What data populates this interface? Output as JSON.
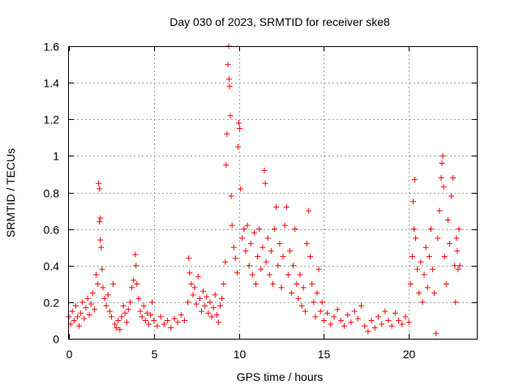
{
  "chart_data": {
    "type": "scatter",
    "title": "Day 030 of 2023, SRMTID for receiver ske8",
    "xlabel": "GPS time / hours",
    "ylabel": "SRMTID / TECUs",
    "xlim": [
      0,
      24
    ],
    "ylim": [
      0,
      1.6
    ],
    "xticks": [
      0,
      5,
      10,
      15,
      20
    ],
    "xtick_labels": [
      "0",
      "5",
      "10",
      "15",
      "20"
    ],
    "yticks": [
      0,
      0.2,
      0.4,
      0.6,
      0.8,
      1.0,
      1.2,
      1.4,
      1.6
    ],
    "ytick_labels": [
      "0",
      "0.2",
      "0.4",
      "0.6",
      "0.8",
      "1",
      "1.2",
      "1.4",
      "1.6"
    ],
    "grid": true,
    "marker": "plus",
    "color": "#ff0000",
    "series": [
      {
        "name": "ske8",
        "points": [
          [
            0.0,
            0.12
          ],
          [
            0.1,
            0.08
          ],
          [
            0.2,
            0.15
          ],
          [
            0.3,
            0.1
          ],
          [
            0.4,
            0.18
          ],
          [
            0.5,
            0.12
          ],
          [
            0.6,
            0.07
          ],
          [
            0.7,
            0.14
          ],
          [
            0.8,
            0.2
          ],
          [
            0.9,
            0.11
          ],
          [
            1.0,
            0.17
          ],
          [
            1.1,
            0.22
          ],
          [
            1.2,
            0.13
          ],
          [
            1.3,
            0.19
          ],
          [
            1.4,
            0.25
          ],
          [
            1.5,
            0.16
          ],
          [
            1.6,
            0.35
          ],
          [
            1.7,
            0.3
          ],
          [
            1.75,
            0.85
          ],
          [
            1.8,
            0.82
          ],
          [
            1.85,
            0.66
          ],
          [
            1.8,
            0.64
          ],
          [
            1.85,
            0.54
          ],
          [
            1.9,
            0.5
          ],
          [
            1.95,
            0.38
          ],
          [
            2.0,
            0.28
          ],
          [
            2.1,
            0.22
          ],
          [
            2.2,
            0.18
          ],
          [
            2.3,
            0.24
          ],
          [
            2.4,
            0.15
          ],
          [
            2.5,
            0.12
          ],
          [
            2.6,
            0.3
          ],
          [
            2.7,
            0.08
          ],
          [
            2.8,
            0.06
          ],
          [
            2.9,
            0.1
          ],
          [
            3.0,
            0.05
          ],
          [
            3.1,
            0.12
          ],
          [
            3.2,
            0.18
          ],
          [
            3.3,
            0.14
          ],
          [
            3.4,
            0.09
          ],
          [
            3.5,
            0.16
          ],
          [
            3.6,
            0.2
          ],
          [
            3.7,
            0.28
          ],
          [
            3.8,
            0.32
          ],
          [
            3.9,
            0.46
          ],
          [
            3.95,
            0.4
          ],
          [
            4.0,
            0.3
          ],
          [
            4.1,
            0.22
          ],
          [
            4.2,
            0.15
          ],
          [
            4.3,
            0.12
          ],
          [
            4.4,
            0.18
          ],
          [
            4.5,
            0.1
          ],
          [
            4.6,
            0.14
          ],
          [
            4.7,
            0.08
          ],
          [
            4.8,
            0.13
          ],
          [
            4.9,
            0.2
          ],
          [
            5.0,
            0.1
          ],
          [
            5.2,
            0.07
          ],
          [
            5.4,
            0.12
          ],
          [
            5.6,
            0.08
          ],
          [
            5.8,
            0.1
          ],
          [
            6.0,
            0.06
          ],
          [
            6.2,
            0.11
          ],
          [
            6.4,
            0.09
          ],
          [
            6.6,
            0.13
          ],
          [
            6.8,
            0.1
          ],
          [
            7.0,
            0.2
          ],
          [
            7.05,
            0.44
          ],
          [
            7.1,
            0.36
          ],
          [
            7.2,
            0.3
          ],
          [
            7.3,
            0.24
          ],
          [
            7.4,
            0.28
          ],
          [
            7.5,
            0.19
          ],
          [
            7.6,
            0.34
          ],
          [
            7.7,
            0.22
          ],
          [
            7.8,
            0.15
          ],
          [
            7.9,
            0.26
          ],
          [
            8.0,
            0.18
          ],
          [
            8.1,
            0.23
          ],
          [
            8.2,
            0.14
          ],
          [
            8.3,
            0.2
          ],
          [
            8.4,
            0.12
          ],
          [
            8.5,
            0.17
          ],
          [
            8.6,
            0.24
          ],
          [
            8.7,
            0.13
          ],
          [
            8.8,
            0.09
          ],
          [
            8.9,
            0.18
          ],
          [
            9.0,
            0.22
          ],
          [
            9.1,
            0.3
          ],
          [
            9.2,
            0.42
          ],
          [
            9.25,
            0.95
          ],
          [
            9.3,
            1.12
          ],
          [
            9.35,
            1.5
          ],
          [
            9.4,
            1.6
          ],
          [
            9.42,
            1.42
          ],
          [
            9.45,
            1.38
          ],
          [
            9.5,
            1.22
          ],
          [
            9.55,
            0.78
          ],
          [
            9.6,
            0.62
          ],
          [
            9.7,
            0.5
          ],
          [
            9.8,
            0.44
          ],
          [
            9.9,
            0.36
          ],
          [
            9.95,
            1.05
          ],
          [
            10.0,
            1.18
          ],
          [
            10.05,
            1.15
          ],
          [
            10.1,
            0.82
          ],
          [
            10.2,
            0.55
          ],
          [
            10.3,
            0.6
          ],
          [
            10.4,
            0.48
          ],
          [
            10.5,
            0.62
          ],
          [
            10.6,
            0.4
          ],
          [
            10.7,
            0.52
          ],
          [
            10.8,
            0.35
          ],
          [
            10.9,
            0.58
          ],
          [
            11.0,
            0.3
          ],
          [
            11.1,
            0.45
          ],
          [
            11.2,
            0.6
          ],
          [
            11.3,
            0.38
          ],
          [
            11.4,
            0.5
          ],
          [
            11.5,
            0.92
          ],
          [
            11.55,
            0.85
          ],
          [
            11.6,
            0.42
          ],
          [
            11.7,
            0.55
          ],
          [
            11.8,
            0.35
          ],
          [
            11.9,
            0.48
          ],
          [
            12.0,
            0.3
          ],
          [
            12.1,
            0.6
          ],
          [
            12.2,
            0.72
          ],
          [
            12.3,
            0.4
          ],
          [
            12.4,
            0.52
          ],
          [
            12.5,
            0.28
          ],
          [
            12.6,
            0.45
          ],
          [
            12.7,
            0.62
          ],
          [
            12.8,
            0.72
          ],
          [
            12.9,
            0.35
          ],
          [
            13.0,
            0.48
          ],
          [
            13.1,
            0.25
          ],
          [
            13.2,
            0.4
          ],
          [
            13.3,
            0.6
          ],
          [
            13.4,
            0.3
          ],
          [
            13.5,
            0.22
          ],
          [
            13.6,
            0.35
          ],
          [
            13.7,
            0.18
          ],
          [
            13.8,
            0.28
          ],
          [
            13.9,
            0.15
          ],
          [
            14.0,
            0.52
          ],
          [
            14.1,
            0.7
          ],
          [
            14.2,
            0.45
          ],
          [
            14.3,
            0.3
          ],
          [
            14.4,
            0.2
          ],
          [
            14.5,
            0.12
          ],
          [
            14.6,
            0.25
          ],
          [
            14.7,
            0.38
          ],
          [
            14.8,
            0.15
          ],
          [
            14.9,
            0.2
          ],
          [
            15.0,
            0.1
          ],
          [
            15.2,
            0.14
          ],
          [
            15.4,
            0.08
          ],
          [
            15.6,
            0.12
          ],
          [
            15.8,
            0.16
          ],
          [
            16.0,
            0.1
          ],
          [
            16.2,
            0.07
          ],
          [
            16.4,
            0.13
          ],
          [
            16.6,
            0.09
          ],
          [
            16.8,
            0.15
          ],
          [
            17.0,
            0.11
          ],
          [
            17.2,
            0.18
          ],
          [
            17.4,
            0.07
          ],
          [
            17.6,
            0.04
          ],
          [
            17.8,
            0.1
          ],
          [
            18.0,
            0.06
          ],
          [
            18.2,
            0.12
          ],
          [
            18.4,
            0.08
          ],
          [
            18.6,
            0.15
          ],
          [
            18.8,
            0.1
          ],
          [
            19.0,
            0.07
          ],
          [
            19.2,
            0.14
          ],
          [
            19.4,
            0.1
          ],
          [
            19.6,
            0.08
          ],
          [
            19.8,
            0.12
          ],
          [
            20.0,
            0.09
          ],
          [
            20.1,
            0.3
          ],
          [
            20.2,
            0.45
          ],
          [
            20.25,
            0.75
          ],
          [
            20.3,
            0.6
          ],
          [
            20.35,
            0.87
          ],
          [
            20.4,
            0.55
          ],
          [
            20.5,
            0.38
          ],
          [
            20.6,
            0.25
          ],
          [
            20.7,
            0.42
          ],
          [
            20.8,
            0.2
          ],
          [
            20.9,
            0.35
          ],
          [
            21.0,
            0.5
          ],
          [
            21.1,
            0.28
          ],
          [
            21.2,
            0.45
          ],
          [
            21.3,
            0.6
          ],
          [
            21.4,
            0.38
          ],
          [
            21.5,
            0.25
          ],
          [
            21.6,
            0.03
          ],
          [
            21.7,
            0.55
          ],
          [
            21.8,
            0.7
          ],
          [
            21.9,
            0.88
          ],
          [
            21.95,
            0.96
          ],
          [
            22.0,
            1.0
          ],
          [
            22.05,
            0.83
          ],
          [
            22.1,
            0.45
          ],
          [
            22.2,
            0.3
          ],
          [
            22.3,
            0.65
          ],
          [
            22.4,
            0.52
          ],
          [
            22.5,
            0.78
          ],
          [
            22.6,
            0.88
          ],
          [
            22.7,
            0.4
          ],
          [
            22.75,
            0.2
          ],
          [
            22.8,
            0.55
          ],
          [
            22.85,
            0.48
          ],
          [
            22.9,
            0.38
          ],
          [
            22.95,
            0.6
          ],
          [
            23.0,
            0.4
          ]
        ]
      }
    ]
  }
}
